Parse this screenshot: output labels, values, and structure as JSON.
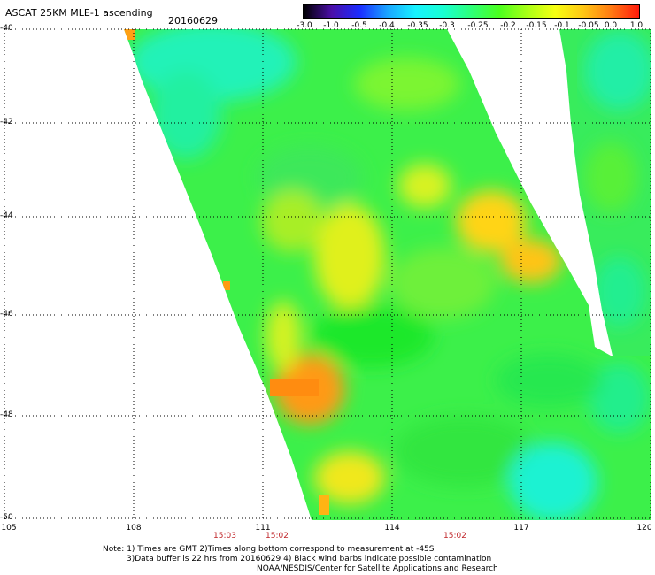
{
  "header": {
    "title": "ASCAT 25KM MLE-1 ascending",
    "date": "20160629"
  },
  "colorbar": {
    "labels": [
      "-3.0",
      "-1.0",
      "-0.5",
      "-0.4",
      "-0.35",
      "-0.3",
      "-0.25",
      "-0.2",
      "-0.15",
      "-0.1",
      "-0.05",
      "0.0",
      "1.0"
    ],
    "colors": [
      "#000000",
      "#4b0fa8",
      "#1b2cff",
      "#1aa5ff",
      "#18f2ff",
      "#18ffd2",
      "#2dff78",
      "#4bff1e",
      "#a9ff16",
      "#f7ff12",
      "#ffc714",
      "#ff7a12",
      "#ff1a0c"
    ]
  },
  "axes": {
    "lat_labels": [
      "-40",
      "-42",
      "-44",
      "-46",
      "-48",
      "-50"
    ],
    "lon_labels": [
      "105",
      "108",
      "111",
      "114",
      "117",
      "120"
    ]
  },
  "times": [
    "15:03",
    "15:02",
    "15:02"
  ],
  "footer": {
    "line1": "Note: 1) Times are GMT 2)Times along bottom correspond to measurement at -45S",
    "line2": "3)Data buffer is 22 hrs from 20160629 4) Black wind barbs indicate possible contamination",
    "line3": "NOAA/NESDIS/Center for Satellite Applications and Research"
  }
}
